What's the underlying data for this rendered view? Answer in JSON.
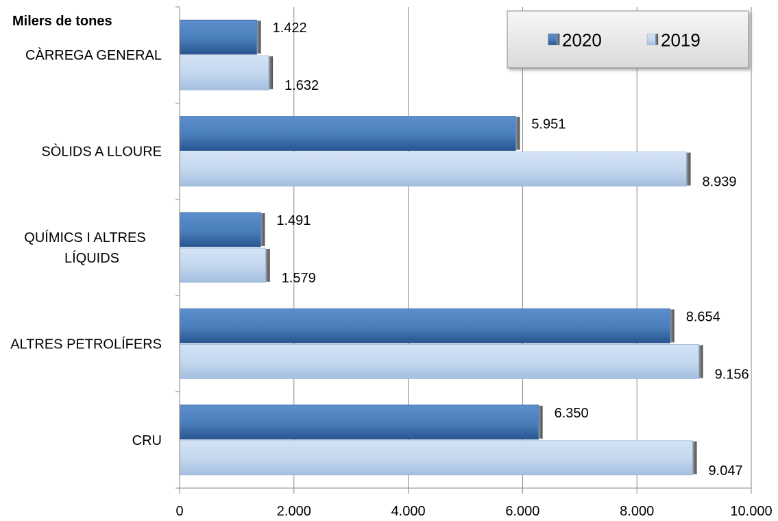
{
  "chart_data": {
    "type": "bar",
    "orientation": "horizontal",
    "unit_label": "Milers de tones",
    "categories": [
      [
        "CÀRREGA GENERAL"
      ],
      [
        "SÒLIDS A LLOURE"
      ],
      [
        "QUÍMICS I ALTRES",
        "LÍQUIDS"
      ],
      [
        "ALTRES PETROLÍFERS"
      ],
      [
        "CRU"
      ]
    ],
    "series": [
      {
        "name": "2020",
        "color": "#4F81BD",
        "values": [
          1422,
          5951,
          1491,
          8654,
          6350
        ],
        "labels": [
          "1.422",
          "5.951",
          "1.491",
          "8.654",
          "6.350"
        ]
      },
      {
        "name": "2019",
        "color": "#C6D9F1",
        "values": [
          1632,
          8939,
          1579,
          9156,
          9047
        ],
        "labels": [
          "1.632",
          "8.939",
          "1.579",
          "9.156",
          "9.047"
        ]
      }
    ],
    "xlim": [
      0,
      10000
    ],
    "ticks": [
      0,
      2000,
      4000,
      6000,
      8000,
      10000
    ],
    "tick_labels": [
      "0",
      "2.000",
      "4.000",
      "6.000",
      "8.000",
      "10.000"
    ],
    "grid": true,
    "legend_position": "top-right"
  }
}
